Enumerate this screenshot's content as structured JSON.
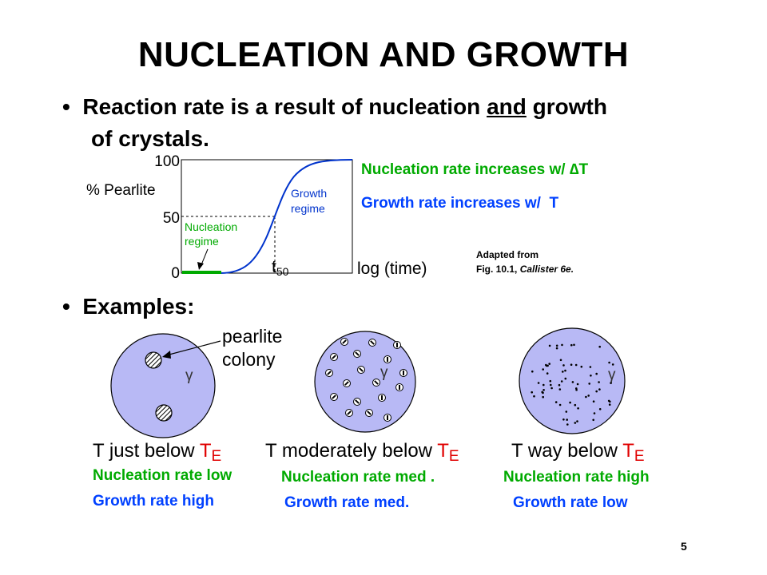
{
  "title": "NUCLEATION AND GROWTH",
  "bullet1": {
    "pre": "Reaction rate is a result of nucleation ",
    "underlined": "and",
    "post": " growth",
    "continuation": "of crystals."
  },
  "graph": {
    "y_label": "% Pearlite",
    "y_ticks": [
      "100",
      "50",
      "0"
    ],
    "x_label": "log (time)",
    "t50_base": "t",
    "t50_sub": "50",
    "growth_label": [
      "Growth",
      "regime"
    ],
    "nucleation_label": [
      "Nucleation",
      "regime"
    ],
    "curve_color": "#0033cc",
    "nucleation_segment_color": "#00aa00"
  },
  "rates_note": {
    "nucleation": "Nucleation rate increases w/ ",
    "nucleation_symbol": "∆T",
    "growth": "Growth rate increases w/  T"
  },
  "citation": {
    "line1": "Adapted from",
    "line2_plain": "Fig. 10.1, ",
    "line2_italic": "Callister 6e."
  },
  "examples_label": "Examples:",
  "pearlite_colony_label": [
    "pearlite",
    "colony"
  ],
  "gamma": "γ",
  "disk_color": "#b8b9f5",
  "examples": [
    {
      "cond_pre": "T just below ",
      "cond_T": "T",
      "cond_E": "E",
      "nucleation": "Nucleation rate low",
      "growth": "Growth rate high"
    },
    {
      "cond_pre": "T moderately below ",
      "cond_T": "T",
      "cond_E": "E",
      "nucleation": "Nucleation rate med .",
      "growth": "Growth rate med."
    },
    {
      "cond_pre": "T way below ",
      "cond_T": "T",
      "cond_E": "E",
      "nucleation": "Nucleation rate high",
      "growth": "Growth rate low"
    }
  ],
  "page_number": "5"
}
